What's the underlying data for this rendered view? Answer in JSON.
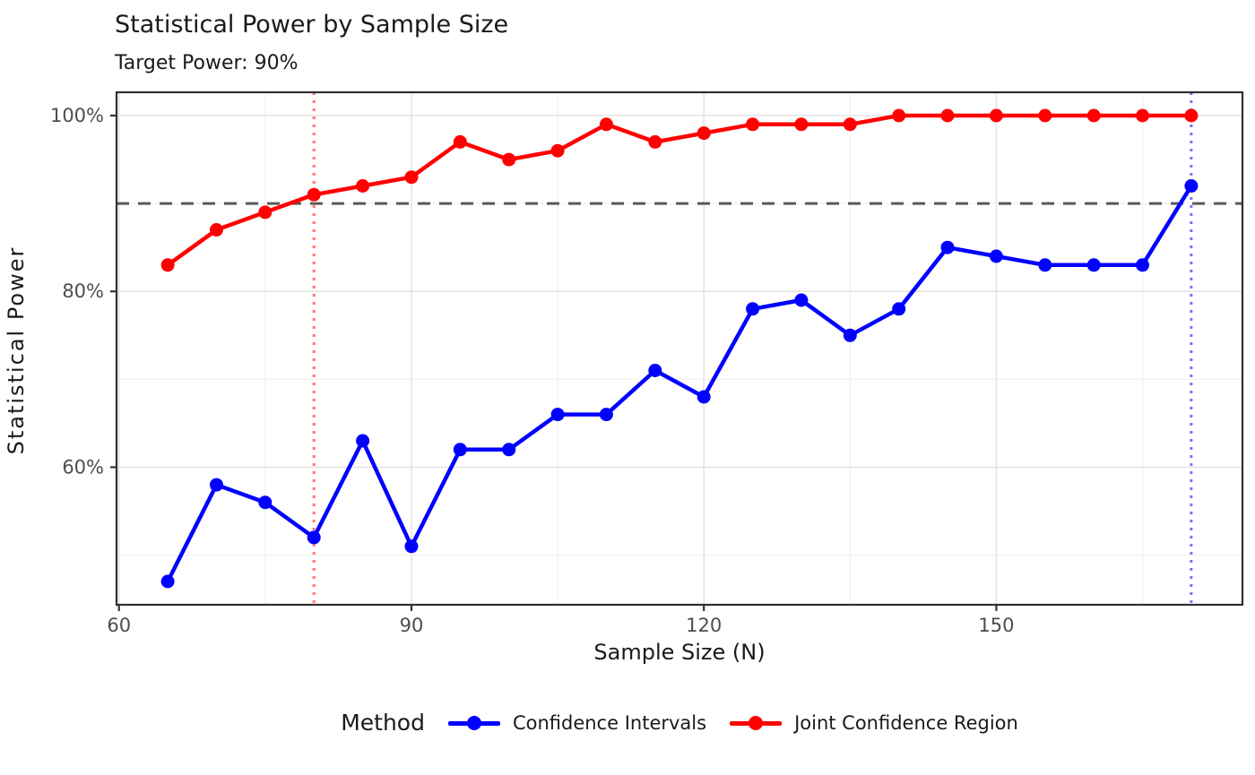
{
  "chart_data": {
    "type": "line",
    "title": "Statistical Power by Sample Size",
    "subtitle": "Target Power: 90%",
    "xlabel": "Sample Size (N)",
    "ylabel": "Statistical Power",
    "x": [
      65,
      70,
      75,
      80,
      85,
      90,
      95,
      100,
      105,
      110,
      115,
      120,
      125,
      130,
      135,
      140,
      145,
      150,
      155,
      160,
      165,
      170
    ],
    "series": [
      {
        "name": "Confidence Intervals",
        "color": "#0000ff",
        "values": [
          47,
          58,
          56,
          52,
          63,
          51,
          62,
          62,
          66,
          66,
          71,
          68,
          78,
          79,
          75,
          78,
          85,
          84,
          83,
          83,
          83,
          92
        ]
      },
      {
        "name": "Joint Confidence Region",
        "color": "#ff0000",
        "values": [
          83,
          87,
          89,
          91,
          92,
          93,
          97,
          95,
          96,
          99,
          97,
          98,
          99,
          99,
          99,
          100,
          100,
          100,
          100,
          100,
          100,
          100
        ]
      }
    ],
    "reference_lines": {
      "target_power_hline": {
        "y": 90,
        "style": "dashed",
        "color": "#595959"
      },
      "red_vline": {
        "x": 80,
        "style": "dotted",
        "color": "rgba(255,0,0,0.55)"
      },
      "blue_vline": {
        "x": 170,
        "style": "dotted",
        "color": "rgba(0,0,255,0.55)"
      }
    },
    "x_ticks": {
      "values": [
        60,
        90,
        120,
        150
      ],
      "labels": [
        "60",
        "90",
        "120",
        "150"
      ]
    },
    "x_minor_ticks": [
      75,
      105,
      135,
      165
    ],
    "y_ticks": {
      "values": [
        60,
        80,
        100
      ],
      "labels": [
        "60%",
        "80%",
        "100%"
      ]
    },
    "y_minor_ticks": [
      50,
      70,
      90
    ],
    "xlim": [
      59.75,
      175.25
    ],
    "ylim": [
      44.35,
      102.65
    ],
    "grid": true,
    "legend": {
      "title": "Method",
      "position": "bottom"
    },
    "colors": {
      "major_grid": "#e3e3e3",
      "minor_grid": "#f1f1f1",
      "panel_border": "#2f2f2f",
      "tick_mark": "#333333",
      "tick_label": "#4d4d4d"
    }
  }
}
